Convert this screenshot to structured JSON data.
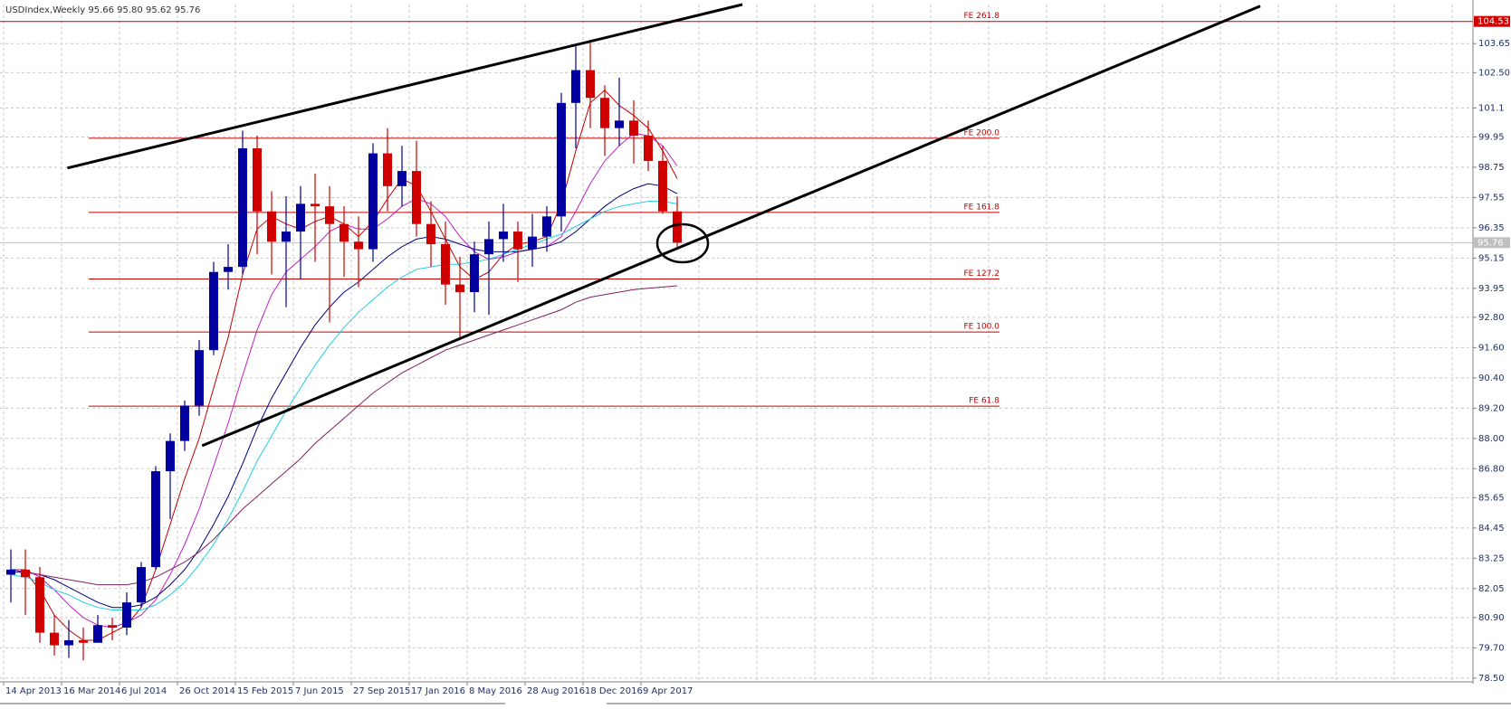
{
  "chart_data": {
    "type": "candlestick",
    "title": "USDIndex,Weekly  95.66 95.80 95.62 95.76",
    "categories": [
      "14 Apr 2013",
      null,
      null,
      null,
      "16 Mar 2014",
      null,
      null,
      null,
      "6 Jul 2014",
      null,
      null,
      null,
      "26 Oct 2014",
      null,
      null,
      null,
      "15 Feb 2015",
      null,
      null,
      null,
      "7 Jun 2015",
      null,
      null,
      null,
      "27 Sep 2015",
      null,
      null,
      null,
      "17 Jan 2016",
      null,
      null,
      null,
      "8 May 2016",
      null,
      null,
      null,
      "28 Aug 2016",
      null,
      null,
      null,
      "18 Dec 2016",
      null,
      null,
      null,
      "9 Apr 2017",
      null,
      null
    ],
    "open": [
      82.6,
      82.8,
      82.5,
      80.3,
      79.8,
      80.0,
      79.9,
      80.6,
      80.5,
      81.5,
      82.9,
      86.7,
      87.9,
      89.3,
      91.5,
      94.6,
      94.8,
      99.5,
      97.0,
      95.8,
      96.2,
      97.3,
      97.2,
      96.5,
      95.8,
      95.5,
      99.3,
      98.0,
      98.6,
      96.5,
      95.7,
      94.1,
      93.8,
      95.3,
      95.9,
      96.2,
      95.5,
      96.0,
      96.8,
      101.3,
      102.6,
      101.5,
      100.3,
      100.6,
      100.0,
      99.0,
      97.0
    ],
    "high": [
      83.6,
      83.6,
      82.9,
      81.0,
      80.8,
      80.5,
      81.0,
      80.9,
      81.9,
      83.1,
      86.9,
      88.2,
      89.5,
      91.9,
      95.0,
      95.7,
      100.2,
      100.0,
      97.8,
      97.6,
      98.0,
      98.5,
      98.0,
      97.2,
      96.8,
      99.7,
      100.3,
      99.6,
      99.8,
      97.4,
      96.6,
      95.2,
      95.8,
      96.6,
      97.3,
      96.6,
      96.9,
      97.2,
      101.7,
      103.6,
      103.8,
      102.0,
      102.3,
      101.4,
      100.6,
      99.6,
      97.6
    ],
    "low": [
      81.5,
      81.0,
      79.9,
      79.4,
      79.3,
      79.2,
      79.9,
      80.0,
      80.2,
      81.3,
      82.8,
      84.8,
      87.5,
      88.9,
      91.3,
      93.9,
      94.5,
      95.3,
      94.5,
      93.2,
      94.3,
      95.0,
      92.6,
      94.4,
      94.0,
      95.0,
      97.0,
      97.2,
      96.0,
      94.8,
      93.3,
      91.9,
      93.0,
      92.9,
      95.0,
      94.2,
      94.8,
      95.4,
      96.2,
      99.5,
      100.3,
      99.2,
      99.6,
      98.9,
      98.6,
      96.9,
      95.6
    ],
    "close": [
      82.8,
      82.5,
      80.3,
      79.8,
      80.0,
      79.9,
      80.6,
      80.5,
      81.5,
      82.9,
      86.7,
      87.9,
      89.3,
      91.5,
      94.6,
      94.8,
      99.5,
      97.0,
      95.8,
      96.2,
      97.3,
      97.2,
      96.5,
      95.8,
      95.5,
      99.3,
      98.0,
      98.6,
      96.5,
      95.7,
      94.1,
      93.8,
      95.3,
      95.9,
      96.2,
      95.5,
      96.0,
      96.8,
      101.3,
      102.6,
      101.5,
      100.3,
      100.6,
      100.0,
      99.0,
      97.0,
      95.76
    ],
    "up_color": "#0000a0",
    "down_color": "#d00000",
    "lines": [
      {
        "color": "#c00000",
        "values": [
          82.8,
          82.7,
          82.0,
          81.0,
          80.4,
          80.0,
          80.0,
          80.3,
          80.6,
          81.3,
          82.8,
          84.6,
          86.4,
          88.0,
          90.0,
          92.0,
          94.5,
          96.3,
          96.8,
          96.5,
          96.3,
          96.6,
          96.8,
          96.5,
          96.0,
          96.6,
          97.5,
          98.3,
          98.0,
          97.0,
          95.9,
          94.8,
          94.3,
          94.6,
          95.3,
          95.7,
          95.8,
          96.0,
          97.3,
          99.4,
          101.3,
          101.8,
          101.2,
          100.8,
          100.3,
          99.4,
          98.3
        ]
      },
      {
        "color": "#c020c0",
        "values": [
          82.8,
          82.8,
          82.5,
          82.0,
          81.4,
          80.9,
          80.6,
          80.5,
          80.7,
          81.0,
          81.6,
          82.6,
          83.8,
          85.2,
          86.9,
          88.6,
          90.5,
          92.3,
          93.7,
          94.6,
          95.1,
          95.6,
          96.2,
          96.5,
          96.3,
          96.3,
          96.7,
          97.2,
          97.5,
          97.3,
          96.8,
          96.0,
          95.4,
          95.1,
          95.2,
          95.4,
          95.5,
          95.6,
          96.0,
          97.0,
          98.1,
          99.0,
          99.6,
          100.1,
          100.0,
          99.6,
          98.8
        ]
      },
      {
        "color": "#000080",
        "values": [
          82.7,
          82.7,
          82.6,
          82.4,
          82.1,
          81.8,
          81.5,
          81.3,
          81.3,
          81.4,
          81.7,
          82.2,
          82.8,
          83.6,
          84.6,
          85.7,
          87.0,
          88.4,
          89.6,
          90.6,
          91.6,
          92.5,
          93.2,
          93.8,
          94.2,
          94.7,
          95.2,
          95.6,
          95.9,
          96.0,
          95.9,
          95.7,
          95.5,
          95.4,
          95.4,
          95.4,
          95.5,
          95.6,
          95.8,
          96.2,
          96.7,
          97.2,
          97.6,
          97.9,
          98.1,
          98.0,
          97.7
        ]
      },
      {
        "color": "#20d0e0",
        "values": [
          82.6,
          82.5,
          82.3,
          82.0,
          81.8,
          81.5,
          81.3,
          81.2,
          81.2,
          81.2,
          81.4,
          81.8,
          82.3,
          83.0,
          83.8,
          84.8,
          85.9,
          87.1,
          88.1,
          89.1,
          90.0,
          90.9,
          91.7,
          92.4,
          93.0,
          93.5,
          94.0,
          94.4,
          94.7,
          94.8,
          94.9,
          94.9,
          95.0,
          95.1,
          95.3,
          95.5,
          95.7,
          95.9,
          96.1,
          96.4,
          96.7,
          97.0,
          97.2,
          97.3,
          97.4,
          97.4,
          97.3
        ]
      },
      {
        "color": "#802060",
        "values": [
          82.8,
          82.7,
          82.6,
          82.5,
          82.4,
          82.3,
          82.2,
          82.2,
          82.2,
          82.3,
          82.5,
          82.8,
          83.1,
          83.5,
          84.0,
          84.6,
          85.2,
          85.7,
          86.2,
          86.7,
          87.2,
          87.8,
          88.3,
          88.8,
          89.3,
          89.8,
          90.2,
          90.6,
          90.9,
          91.2,
          91.5,
          91.7,
          91.9,
          92.1,
          92.3,
          92.5,
          92.7,
          92.9,
          93.1,
          93.4,
          93.6,
          93.7,
          93.8,
          93.9,
          93.95,
          94.0,
          94.05
        ]
      }
    ],
    "levels": [
      {
        "label": "FE 261.8",
        "value": 104.53
      },
      {
        "label": "FE 200.0",
        "value": 99.9
      },
      {
        "label": "FE 161.8",
        "value": 96.96
      },
      {
        "label": "FE 127.2",
        "value": 94.32
      },
      {
        "label": "FE 100.0",
        "value": 92.22
      },
      {
        "label": "FE 61.8",
        "value": 89.28
      }
    ],
    "level_color": "#c00000",
    "trendlines": [
      {
        "x": [
          3.9,
          50.5
        ],
        "y": [
          98.72,
          105.2
        ]
      },
      {
        "x": [
          13.2,
          86.25
        ],
        "y": [
          87.71,
          105.14
        ]
      }
    ],
    "highlight_price": 104.53,
    "current_price": 95.76,
    "ylim": [
      78.35,
      105.2
    ],
    "yticks": [
      103.65,
      {
        "value": 102.5,
        "label": "102.50"
      },
      101.1,
      99.95,
      98.75,
      97.55,
      96.35,
      95.15,
      93.95,
      {
        "value": 92.8,
        "label": "92.80"
      },
      {
        "value": 91.6,
        "label": "91.60"
      },
      {
        "value": 90.4,
        "label": "90.40"
      },
      {
        "value": 89.2,
        "label": "89.20"
      },
      {
        "value": 88,
        "label": "88.00"
      },
      {
        "value": 86.8,
        "label": "86.80"
      },
      85.65,
      84.45,
      83.25,
      82.05,
      {
        "value": 80.9,
        "label": "80.90"
      },
      {
        "value": 79.7,
        "label": "79.70"
      },
      {
        "value": 78.5,
        "label": "78.50"
      }
    ],
    "grid": true
  }
}
